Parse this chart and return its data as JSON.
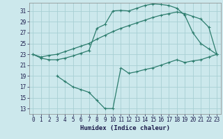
{
  "xlabel": "Humidex (Indice chaleur)",
  "bg_color": "#cce8ec",
  "line_color": "#2d7d6e",
  "grid_color": "#a8cfd4",
  "xlim": [
    -0.5,
    23.5
  ],
  "ylim": [
    12,
    32.5
  ],
  "yticks": [
    13,
    15,
    17,
    19,
    21,
    23,
    25,
    27,
    29,
    31
  ],
  "xticks": [
    0,
    1,
    2,
    3,
    4,
    5,
    6,
    7,
    8,
    9,
    10,
    11,
    12,
    13,
    14,
    15,
    16,
    17,
    18,
    19,
    20,
    21,
    22,
    23
  ],
  "line1_x": [
    0,
    1,
    2,
    3,
    4,
    5,
    6,
    7,
    8,
    9,
    10,
    11,
    12,
    13,
    14,
    15,
    16,
    17,
    18,
    19,
    20,
    21,
    22,
    23
  ],
  "line1_y": [
    23,
    22.5,
    22.8,
    23.0,
    23.5,
    24.0,
    24.5,
    25.0,
    25.8,
    26.5,
    27.2,
    27.8,
    28.3,
    28.8,
    29.3,
    29.8,
    30.2,
    30.5,
    30.8,
    30.5,
    30.0,
    29.5,
    28.0,
    23.0
  ],
  "line2_x": [
    0,
    1,
    2,
    3,
    4,
    5,
    6,
    7,
    8,
    9,
    10,
    11,
    12,
    13,
    14,
    15,
    16,
    17,
    18,
    19,
    20,
    21,
    22,
    23
  ],
  "line2_y": [
    23,
    22.3,
    22.0,
    22.0,
    22.3,
    22.7,
    23.2,
    23.7,
    27.8,
    28.5,
    31.0,
    31.1,
    31.0,
    31.5,
    32.0,
    32.3,
    32.2,
    32.0,
    31.5,
    30.2,
    27.0,
    25.0,
    24.0,
    23.0
  ],
  "line3_x": [
    3,
    4,
    5,
    6,
    7,
    8,
    9,
    10,
    11,
    12,
    13,
    14,
    15,
    16,
    17,
    18,
    19,
    20,
    21,
    22,
    23
  ],
  "line3_y": [
    19.0,
    18.0,
    17.0,
    16.5,
    16.0,
    14.5,
    13.0,
    13.0,
    20.5,
    19.5,
    19.8,
    20.2,
    20.5,
    21.0,
    21.5,
    22.0,
    21.5,
    21.8,
    22.0,
    22.5,
    23.0
  ]
}
